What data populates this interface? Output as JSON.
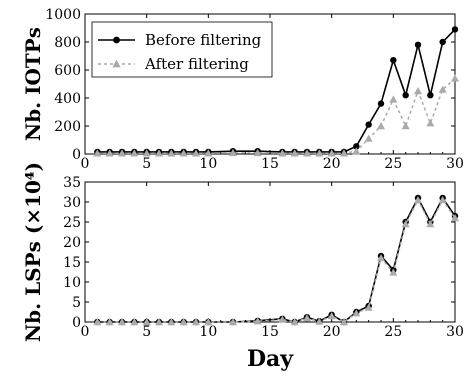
{
  "chart_data": [
    {
      "type": "line",
      "ylabel": "Nb. IOTPs",
      "xlabel": "",
      "xlim": [
        0,
        30
      ],
      "ylim": [
        0,
        1000
      ],
      "xticks": [
        "0",
        "5",
        "10",
        "15",
        "20",
        "25",
        "30"
      ],
      "yticks": [
        "0",
        "200",
        "400",
        "600",
        "800",
        "1000"
      ],
      "legend_position": "top-left",
      "grid": false,
      "series": [
        {
          "name": "Before filtering",
          "color": "#000000",
          "marker": "circle",
          "linestyle": "solid",
          "x": [
            1,
            2,
            3,
            4,
            5,
            6,
            7,
            8,
            9,
            10,
            12,
            14,
            16,
            17,
            18,
            19,
            20,
            21,
            22,
            23,
            24,
            25,
            26,
            27,
            28,
            29,
            30
          ],
          "y": [
            15,
            15,
            15,
            15,
            15,
            15,
            15,
            15,
            15,
            15,
            20,
            20,
            15,
            15,
            15,
            15,
            15,
            15,
            55,
            210,
            360,
            670,
            420,
            780,
            420,
            800,
            890
          ]
        },
        {
          "name": "After filtering",
          "color": "#aaaaaa",
          "marker": "triangle",
          "linestyle": "dotted",
          "x": [
            1,
            2,
            3,
            4,
            5,
            6,
            7,
            8,
            9,
            10,
            12,
            14,
            16,
            17,
            18,
            19,
            20,
            21,
            22,
            23,
            24,
            25,
            26,
            27,
            28,
            29,
            30
          ],
          "y": [
            5,
            5,
            5,
            5,
            5,
            5,
            5,
            5,
            5,
            5,
            8,
            8,
            5,
            5,
            5,
            5,
            5,
            5,
            20,
            110,
            200,
            390,
            200,
            450,
            220,
            460,
            540
          ]
        }
      ]
    },
    {
      "type": "line",
      "ylabel": "Nb. LSPs (×10⁴)",
      "xlabel": "Day",
      "xlim": [
        0,
        30
      ],
      "ylim": [
        0,
        35
      ],
      "xticks": [
        "0",
        "5",
        "10",
        "15",
        "20",
        "25",
        "30"
      ],
      "yticks": [
        "0",
        "5",
        "10",
        "15",
        "20",
        "25",
        "30",
        "35"
      ],
      "grid": false,
      "series": [
        {
          "color": "#000000",
          "marker": "circle",
          "linestyle": "solid",
          "x": [
            1,
            2,
            3,
            4,
            5,
            6,
            7,
            8,
            9,
            10,
            12,
            14,
            16,
            17,
            18,
            19,
            20,
            21,
            22,
            23,
            24,
            25,
            26,
            27,
            28,
            29,
            30
          ],
          "y": [
            0,
            0,
            0,
            0,
            0,
            0,
            0,
            0,
            0,
            0,
            0,
            0.3,
            0.8,
            0,
            1.2,
            0.2,
            1.8,
            0,
            2.5,
            4,
            16.5,
            13,
            25,
            31,
            25,
            31,
            26.5
          ]
        },
        {
          "color": "#aaaaaa",
          "marker": "triangle",
          "linestyle": "dotted",
          "x": [
            1,
            2,
            3,
            4,
            5,
            6,
            7,
            8,
            9,
            10,
            12,
            14,
            16,
            17,
            18,
            19,
            20,
            21,
            22,
            23,
            24,
            25,
            26,
            27,
            28,
            29,
            30
          ],
          "y": [
            0,
            0,
            0,
            0,
            0,
            0,
            0,
            0,
            0,
            0,
            0,
            0.2,
            0.6,
            0,
            1,
            0.1,
            1.5,
            0,
            2.2,
            3.6,
            16,
            12.4,
            24.5,
            30.5,
            24.5,
            30.5,
            26
          ]
        }
      ]
    }
  ]
}
